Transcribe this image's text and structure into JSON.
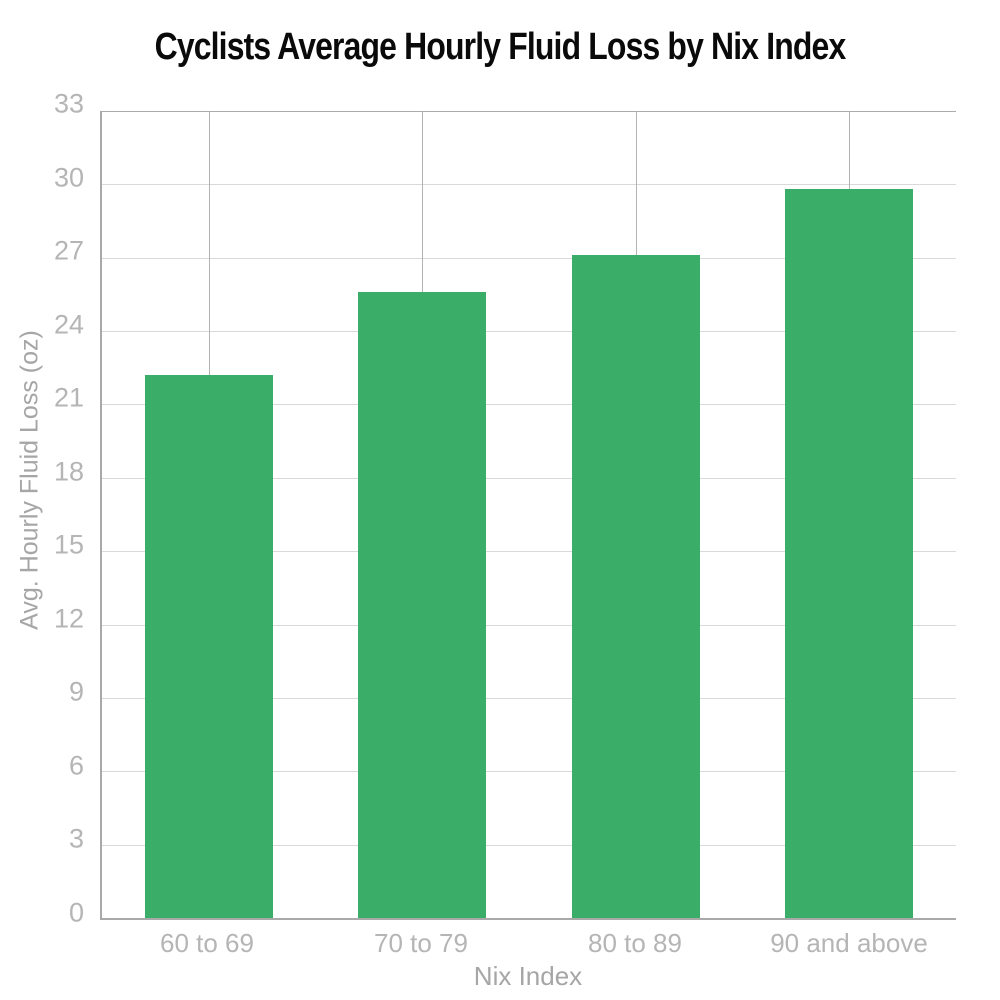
{
  "chart_data": {
    "type": "bar",
    "title": "Cyclists Average Hourly Fluid Loss by Nix Index",
    "xlabel": "Nix Index",
    "ylabel": "Avg. Hourly Fluid Loss (oz)",
    "categories": [
      "60 to 69",
      "70 to 79",
      "80 to 89",
      "90 and above"
    ],
    "values": [
      22.2,
      25.6,
      27.1,
      29.8
    ],
    "ylim": [
      0,
      33
    ],
    "yticks": [
      0,
      3,
      6,
      9,
      12,
      15,
      18,
      21,
      24,
      27,
      30,
      33
    ],
    "grid": "horizontal gridlines at every y tick, one vertical gridline at each category center, no right spine",
    "legend": "none",
    "colors": {
      "bar": "#3aad68",
      "h_gridline": "#d9d9d9",
      "v_gridline": "#b3b3b3",
      "top_gridline": "#ababab",
      "axis_line": "#a9a9a9",
      "tick_label": "#b5b5b5",
      "axis_title": "#a6a6a6",
      "title": "#0a0a0a",
      "background": "#ffffff"
    }
  }
}
